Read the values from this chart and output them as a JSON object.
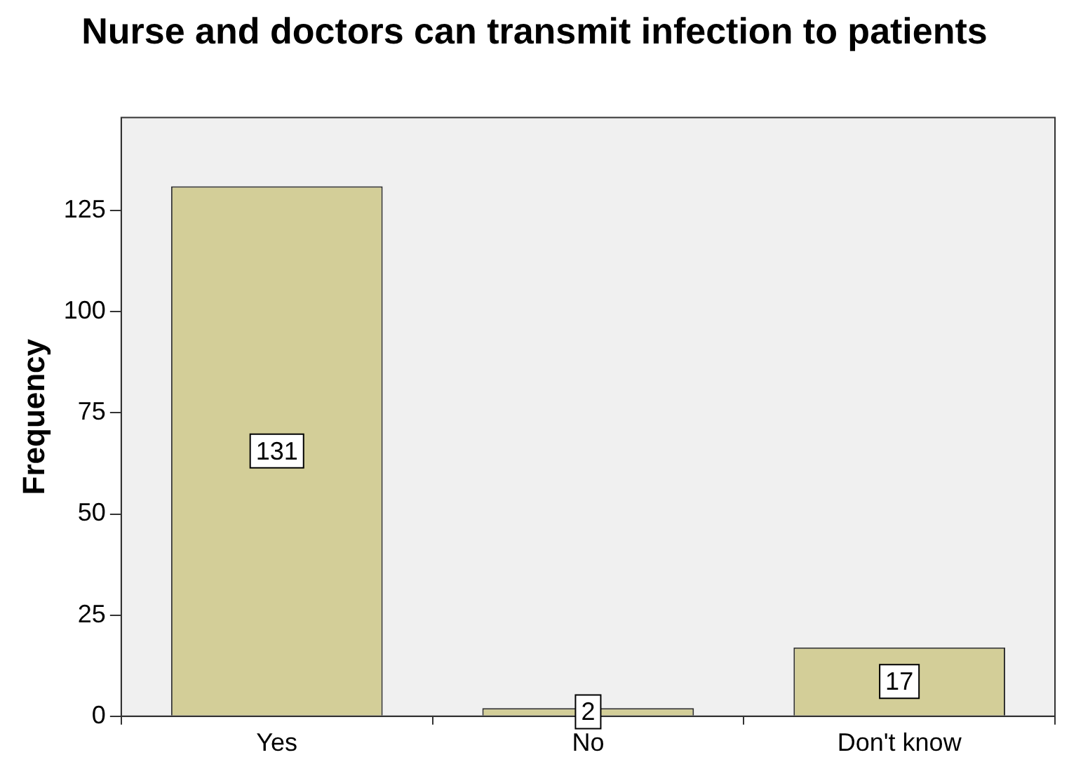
{
  "chart_data": {
    "type": "bar",
    "title": "Nurse and doctors can transmit infection to patients",
    "ylabel": "Frequency",
    "categories": [
      "Yes",
      "No",
      "Don't know"
    ],
    "values": [
      131,
      2,
      17
    ],
    "color": "#d3ce98",
    "ylim": [
      0,
      148
    ],
    "yticks": [
      0,
      25,
      50,
      75,
      100,
      125
    ],
    "grid": false,
    "legend": false,
    "data_labels": true
  }
}
